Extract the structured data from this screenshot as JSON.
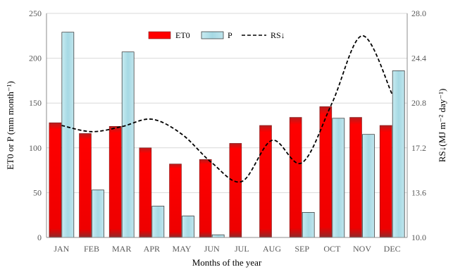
{
  "chart_data": {
    "type": "bar",
    "title": "",
    "xlabel": "Months of the year",
    "ylabel": "ET0 or P (mm month⁻¹)",
    "y2label": "RS↓(MJ m⁻² day⁻¹)",
    "categories": [
      "JAN",
      "FEB",
      "MAR",
      "APR",
      "MAY",
      "JUN",
      "JUL",
      "AUG",
      "SEP",
      "OCT",
      "NOV",
      "DEC"
    ],
    "ylim": [
      0,
      250
    ],
    "yticks": [
      "0",
      "50",
      "100",
      "150",
      "200",
      "250"
    ],
    "y2lim": [
      10.0,
      28.0
    ],
    "y2ticks": [
      "10.0",
      "13.6",
      "17.2",
      "20.8",
      "24.4",
      "28.0"
    ],
    "grid": true,
    "legend_position": "top-right",
    "series": [
      {
        "name": "ET0",
        "type": "bar",
        "axis": "left",
        "color": "#e8000b",
        "values": [
          128,
          116,
          124,
          100,
          82,
          87,
          105,
          125,
          134,
          146,
          134,
          125
        ]
      },
      {
        "name": "P",
        "type": "bar",
        "axis": "left",
        "color": "#a8dce6",
        "values": [
          229,
          53,
          207,
          35,
          24,
          3,
          0,
          0,
          28,
          133,
          115,
          186
        ]
      },
      {
        "name": "RS↓",
        "type": "line",
        "axis": "right",
        "color": "#000000",
        "dash": "dashed",
        "values": [
          19.0,
          18.5,
          18.9,
          19.5,
          18.3,
          16.0,
          14.5,
          17.8,
          16.0,
          20.8,
          26.2,
          21.5
        ]
      }
    ]
  }
}
